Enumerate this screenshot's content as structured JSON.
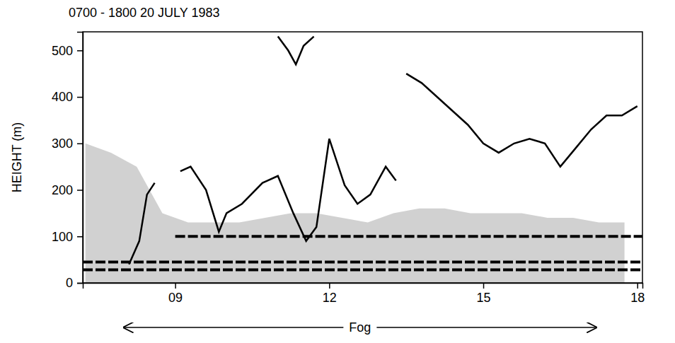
{
  "chart_data": {
    "type": "line",
    "title": "0700 - 1800 20 JULY 1983",
    "y_label": "HEIGHT (m)",
    "xlim": [
      7.2,
      18.1
    ],
    "xticks": [
      {
        "value": 9,
        "label": "09"
      },
      {
        "value": 12,
        "label": "12"
      },
      {
        "value": 15,
        "label": "15"
      },
      {
        "value": 18,
        "label": "18"
      }
    ],
    "ylim": [
      0,
      540
    ],
    "yticks": [
      0,
      100,
      200,
      300,
      400,
      500
    ],
    "grid": false,
    "series": [
      {
        "type": "area",
        "color": "#9a9a9a",
        "x": [
          7.25,
          7.75,
          8.25,
          8.75,
          9.25,
          9.75,
          10.25,
          10.75,
          11.25,
          11.75,
          12.25,
          12.75,
          13.25,
          13.75,
          14.25,
          14.75,
          15.25,
          15.75,
          16.25,
          16.75,
          17.25,
          17.75
        ],
        "values": [
          300,
          280,
          250,
          150,
          130,
          130,
          130,
          140,
          150,
          150,
          140,
          130,
          150,
          160,
          160,
          150,
          150,
          150,
          140,
          140,
          130,
          130
        ]
      },
      {
        "type": "line",
        "color": "#000000",
        "line_style": "dashed",
        "x": [
          7.2,
          18.1
        ],
        "values": [
          28,
          28
        ]
      },
      {
        "type": "line",
        "color": "#000000",
        "line_style": "dashed",
        "x": [
          7.2,
          18.1
        ],
        "values": [
          45,
          45
        ]
      },
      {
        "type": "line",
        "color": "#000000",
        "line_style": "dashed",
        "x": [
          9.0,
          18.1
        ],
        "values": [
          100,
          100
        ]
      },
      {
        "type": "line",
        "color": "#000000",
        "line_style": "solid",
        "x": [
          8.1,
          8.3,
          8.45,
          8.6
        ],
        "values": [
          40,
          90,
          190,
          215
        ]
      },
      {
        "type": "line",
        "color": "#000000",
        "line_style": "solid",
        "x": [
          9.1,
          9.3,
          9.6,
          9.85,
          10.0,
          10.3,
          10.7,
          11.0,
          11.3,
          11.55,
          11.75,
          12.0,
          12.3,
          12.55,
          12.8,
          13.1,
          13.3
        ],
        "values": [
          240,
          250,
          200,
          110,
          150,
          170,
          215,
          230,
          150,
          90,
          120,
          310,
          210,
          170,
          190,
          250,
          220
        ]
      },
      {
        "type": "line",
        "color": "#000000",
        "line_style": "solid",
        "x": [
          11.0,
          11.2,
          11.35,
          11.5,
          11.7
        ],
        "values": [
          530,
          500,
          470,
          510,
          530
        ]
      },
      {
        "type": "line",
        "color": "#000000",
        "line_style": "solid",
        "x": [
          13.5,
          13.8,
          14.1,
          14.4,
          14.7,
          15.0,
          15.3,
          15.6,
          15.9,
          16.2,
          16.5,
          16.8,
          17.1,
          17.4,
          17.7,
          18.0
        ],
        "values": [
          450,
          430,
          400,
          370,
          340,
          300,
          280,
          300,
          310,
          300,
          250,
          290,
          330,
          360,
          360,
          380
        ]
      }
    ],
    "annotations": [
      {
        "text": "Fog",
        "x": [
          8.0,
          17.2
        ]
      }
    ]
  }
}
